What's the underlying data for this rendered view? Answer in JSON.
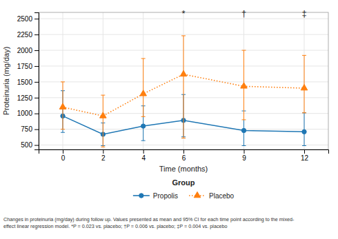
{
  "chart_data": {
    "type": "line",
    "xlabel": "Time (months)",
    "ylabel": "Proteinuria (mg/day)",
    "x": [
      0,
      2,
      4,
      6,
      9,
      12
    ],
    "xlim": [
      -1.2,
      13.2
    ],
    "xticks": [
      0,
      2,
      4,
      6,
      9,
      12
    ],
    "ylim": [
      430,
      2600
    ],
    "yticks": [
      500,
      750,
      1000,
      1250,
      1500,
      1750,
      2000,
      2250,
      2500
    ],
    "grid": true,
    "legend": "bottom",
    "legend_title": "Group",
    "series": [
      {
        "name": "Propolis",
        "marker": "circle",
        "line_style": "solid",
        "values": [
          960,
          670,
          800,
          890,
          730,
          710
        ],
        "ci_low": [
          700,
          490,
          570,
          630,
          490,
          490
        ],
        "ci_high": [
          1360,
          850,
          1120,
          1300,
          1040,
          1010
        ]
      },
      {
        "name": "Placebo",
        "marker": "triangle",
        "line_style": "dotted",
        "values": [
          1100,
          960,
          1310,
          1620,
          1430,
          1400
        ],
        "ci_low": [
          750,
          470,
          950,
          610,
          900,
          1010
        ],
        "ci_high": [
          1500,
          1290,
          1870,
          2230,
          2000,
          1920
        ]
      }
    ],
    "annotations": [
      {
        "x": 6,
        "y": 2540,
        "text": "*"
      },
      {
        "x": 9,
        "y": 2540,
        "text": "†"
      },
      {
        "x": 12,
        "y": 2540,
        "text": "‡"
      }
    ],
    "caption": [
      "Changes in proteinuria (mg/day) during follow up. Values presented as mean and 95% CI for each time point according to the mixed-",
      "effect linear regression model. *P = 0.023 vs. placebo; †P = 0.006 vs. placebo; ‡P = 0.004 vs. placebo"
    ]
  }
}
